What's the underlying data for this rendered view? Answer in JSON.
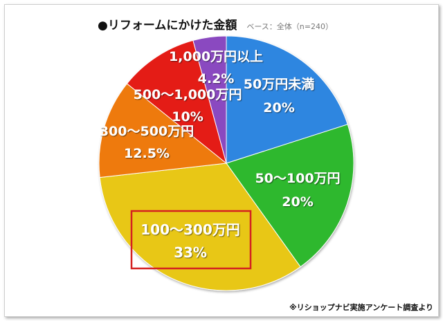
{
  "header": {
    "title": "●リフォームにかけた金額",
    "subtitle": "ベース：全体（n=240）"
  },
  "footer": {
    "source": "※リショップナビ実施アンケート調査より"
  },
  "chart_data": {
    "type": "pie",
    "title": "●リフォームにかけた金額",
    "subtitle": "ベース：全体（n=240）",
    "start": "12 o'clock",
    "direction": "clockwise",
    "highlighted": "100〜300万円",
    "slices": [
      {
        "label": "50万円未満",
        "value": 20,
        "value_label": "20%",
        "color": "#2f86e0"
      },
      {
        "label": "50〜100万円",
        "value": 20,
        "value_label": "20%",
        "color": "#2fb82f"
      },
      {
        "label": "100〜300万円",
        "value": 33,
        "value_label": "33%",
        "color": "#e8c712"
      },
      {
        "label": "300〜500万円",
        "value": 12.5,
        "value_label": "12.5%",
        "color": "#ee7a10"
      },
      {
        "label": "500〜1,000万円",
        "value": 10,
        "value_label": "10%",
        "color": "#e41a18"
      },
      {
        "label": "1,000万円以上",
        "value": 4.2,
        "value_label": "4.2%",
        "color": "#8a48c0"
      }
    ],
    "highlight_color": "#d42020"
  }
}
